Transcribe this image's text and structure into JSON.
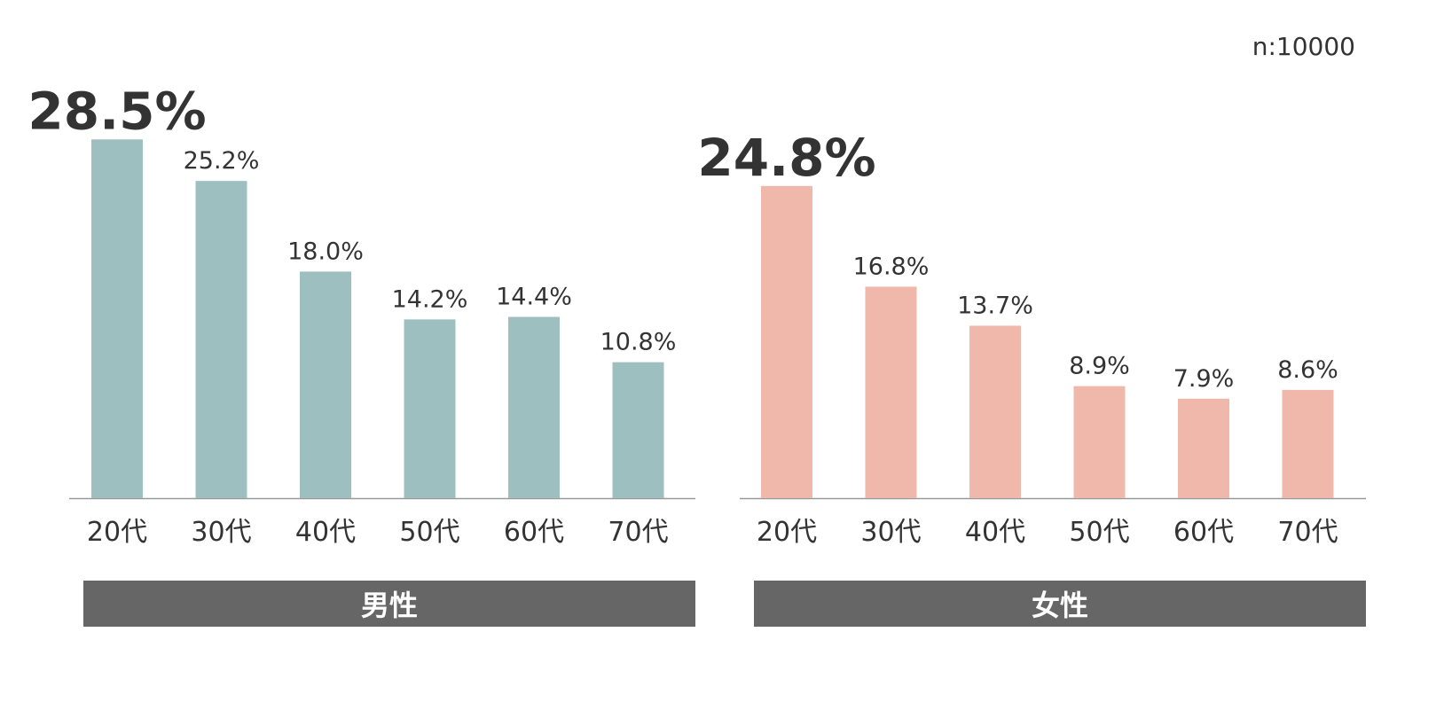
{
  "sample_size": "n:10000",
  "chart_data": [
    {
      "type": "bar",
      "group_label": "男性",
      "categories": [
        "20代",
        "30代",
        "40代",
        "50代",
        "60代",
        "70代"
      ],
      "values": [
        28.5,
        25.2,
        18.0,
        14.2,
        14.4,
        10.8
      ],
      "value_labels": [
        "28.5%",
        "25.2%",
        "18.0%",
        "14.2%",
        "14.4%",
        "10.8%"
      ],
      "color": "#9dbfbf",
      "highlight_index": 0
    },
    {
      "type": "bar",
      "group_label": "女性",
      "categories": [
        "20代",
        "30代",
        "40代",
        "50代",
        "60代",
        "70代"
      ],
      "values": [
        24.8,
        16.8,
        13.7,
        8.9,
        7.9,
        8.6
      ],
      "value_labels": [
        "24.8%",
        "16.8%",
        "13.7%",
        "8.9%",
        "7.9%",
        "8.6%"
      ],
      "color": "#f0b7ab",
      "highlight_index": 0
    }
  ],
  "axis_color": "#999999",
  "label_color": "#333333"
}
